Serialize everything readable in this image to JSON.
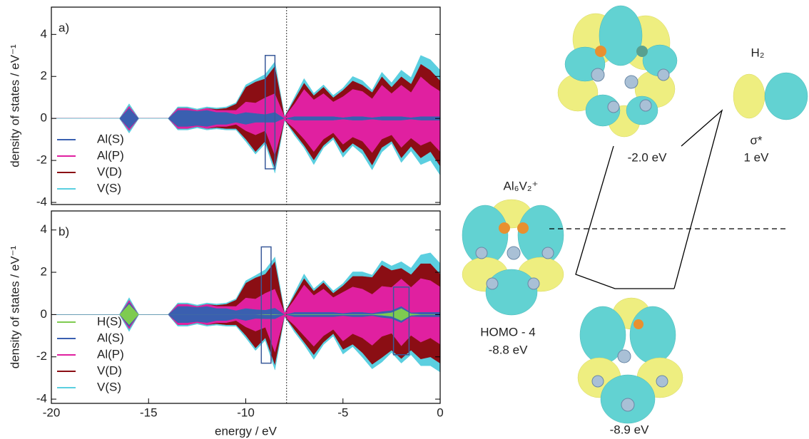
{
  "chart_data": [
    {
      "type": "area",
      "annotation": "a)",
      "ylabel": "density of states / eV⁻¹",
      "x": [
        -20,
        -19.5,
        -19,
        -18.5,
        -18,
        -17.5,
        -17,
        -16.5,
        -16,
        -15.5,
        -15,
        -14.5,
        -14,
        -13.5,
        -13,
        -12.5,
        -12,
        -11.5,
        -11,
        -10.5,
        -10,
        -9.5,
        -9,
        -8.5,
        -8,
        -7.5,
        -7,
        -6.5,
        -6,
        -5.5,
        -5,
        -4.5,
        -4,
        -3.5,
        -3,
        -2.5,
        -2,
        -1.5,
        -1,
        -0.5,
        0
      ],
      "xlim": [
        -20,
        0
      ],
      "ylim": [
        -4.1,
        5.3
      ],
      "yticks": [
        -4,
        -2,
        0,
        2,
        4
      ],
      "vline": -7.9,
      "boxes": [
        {
          "xlim": [
            -9,
            -8.5
          ],
          "ylim": [
            -2.4,
            3.0
          ]
        }
      ],
      "series": [
        {
          "name": "Al(S)",
          "color": "#3a5fb0",
          "values": [
            0,
            0,
            0,
            0,
            0,
            0,
            0,
            0,
            0.5,
            0,
            0,
            0,
            0,
            0.4,
            0.4,
            0.35,
            0.4,
            0.3,
            0.3,
            0.2,
            0.3,
            0.25,
            0.2,
            0.3,
            0,
            0.1,
            0.1,
            0.1,
            0.1,
            0.1,
            0.05,
            0.1,
            0.1,
            0.05,
            0.1,
            0.1,
            0.1,
            0.05,
            0.1,
            0.1,
            0.1
          ],
          "values_down": [
            0,
            0,
            0,
            0,
            0,
            0,
            0,
            0,
            -0.5,
            0,
            0,
            0,
            0,
            -0.4,
            -0.4,
            -0.35,
            -0.4,
            -0.3,
            -0.3,
            -0.2,
            -0.3,
            -0.2,
            -0.2,
            -0.2,
            0,
            -0.1,
            -0.1,
            -0.1,
            -0.1,
            -0.1,
            -0.05,
            -0.1,
            -0.1,
            -0.05,
            -0.1,
            -0.1,
            -0.1,
            -0.05,
            -0.1,
            -0.1,
            -0.1
          ]
        },
        {
          "name": "Al(P)",
          "color": "#e020a0",
          "values": [
            0,
            0,
            0,
            0,
            0,
            0,
            0,
            0,
            0.1,
            0,
            0,
            0,
            0,
            0.1,
            0.1,
            0.05,
            0.1,
            0.1,
            0.1,
            0.2,
            0.5,
            0.5,
            0.8,
            0.9,
            0.1,
            0.6,
            1.3,
            0.8,
            1.1,
            0.7,
            1.0,
            1.3,
            1.2,
            0.9,
            1.5,
            1.1,
            1.5,
            1.2,
            1.9,
            1.5,
            1.2
          ],
          "values_down": [
            0,
            0,
            0,
            0,
            0,
            0,
            0,
            0,
            -0.1,
            0,
            0,
            0,
            0,
            -0.1,
            -0.1,
            -0.05,
            -0.1,
            -0.1,
            -0.1,
            -0.1,
            -0.3,
            -0.6,
            -0.4,
            -1.6,
            -0.1,
            -0.4,
            -0.9,
            -1.5,
            -0.9,
            -0.6,
            -1.2,
            -0.8,
            -1.0,
            -1.6,
            -0.9,
            -0.7,
            -1.3,
            -0.9,
            -1.2,
            -1.0,
            -1.5
          ]
        },
        {
          "name": "V(D)",
          "color": "#8b0e14",
          "values": [
            0,
            0,
            0,
            0,
            0,
            0,
            0,
            0,
            0,
            0,
            0,
            0,
            0,
            0,
            0,
            0,
            0,
            0.05,
            0.1,
            0.3,
            0.7,
            1.0,
            0.9,
            1.3,
            0,
            0.2,
            0.3,
            0.2,
            0.3,
            0.2,
            0.3,
            0.4,
            0.3,
            0.3,
            0.4,
            0.3,
            0.4,
            0.4,
            0.6,
            0.7,
            0.5
          ],
          "values_down": [
            0,
            0,
            0,
            0,
            0,
            0,
            0,
            0,
            0,
            0,
            0,
            0,
            0,
            0,
            0,
            0,
            0,
            -0.05,
            -0.1,
            -0.2,
            -0.4,
            -0.8,
            -0.5,
            -0.6,
            0,
            -0.2,
            -0.3,
            -0.4,
            -0.3,
            -0.2,
            -0.4,
            -0.3,
            -0.4,
            -0.6,
            -0.4,
            -0.3,
            -0.5,
            -0.4,
            -0.6,
            -0.5,
            -0.7
          ]
        },
        {
          "name": "V(S)",
          "color": "#5bcfe0",
          "values": [
            0,
            0,
            0,
            0,
            0,
            0,
            0,
            0,
            0.1,
            0,
            0,
            0,
            0,
            0.05,
            0.05,
            0.05,
            0.05,
            0.05,
            0.05,
            0.05,
            0.1,
            0.1,
            0.2,
            0.2,
            0,
            0.1,
            0.2,
            0.1,
            0.1,
            0.1,
            0.1,
            0.2,
            0.2,
            0.1,
            0.2,
            0.2,
            0.3,
            0.3,
            0.4,
            0.5,
            0.5
          ],
          "values_down": [
            0,
            0,
            0,
            0,
            0,
            0,
            0,
            0,
            -0.1,
            0,
            0,
            0,
            0,
            -0.05,
            -0.05,
            -0.05,
            -0.05,
            -0.05,
            -0.05,
            -0.05,
            -0.1,
            -0.1,
            -0.1,
            -0.2,
            0,
            -0.1,
            -0.1,
            -0.2,
            -0.1,
            -0.1,
            -0.2,
            -0.1,
            -0.2,
            -0.2,
            -0.2,
            -0.1,
            -0.2,
            -0.2,
            -0.3,
            -0.4,
            -0.4
          ]
        }
      ]
    },
    {
      "type": "area",
      "annotation": "b)",
      "ylabel": "density of states / eV⁻¹",
      "xlabel": "energy / eV",
      "x": [
        -20,
        -19.5,
        -19,
        -18.5,
        -18,
        -17.5,
        -17,
        -16.5,
        -16,
        -15.5,
        -15,
        -14.5,
        -14,
        -13.5,
        -13,
        -12.5,
        -12,
        -11.5,
        -11,
        -10.5,
        -10,
        -9.5,
        -9,
        -8.5,
        -8,
        -7.5,
        -7,
        -6.5,
        -6,
        -5.5,
        -5,
        -4.5,
        -4,
        -3.5,
        -3,
        -2.5,
        -2,
        -1.5,
        -1,
        -0.5,
        0
      ],
      "xlim": [
        -20,
        0
      ],
      "ylim": [
        -4.2,
        4.9
      ],
      "xticks": [
        -20,
        -15,
        -10,
        -5,
        0
      ],
      "yticks": [
        -4,
        -2,
        0,
        2,
        4
      ],
      "vline": -7.9,
      "boxes": [
        {
          "xlim": [
            -9.2,
            -8.7
          ],
          "ylim": [
            -2.3,
            3.2
          ]
        },
        {
          "xlim": [
            -2.4,
            -1.6
          ],
          "ylim": [
            -1.9,
            1.3
          ]
        }
      ],
      "series": [
        {
          "name": "H(S)",
          "color": "#7ecb50",
          "values": [
            0,
            0,
            0,
            0,
            0,
            0,
            0,
            0,
            0.5,
            0,
            0,
            0,
            0,
            0,
            0,
            0,
            0,
            0,
            0,
            0,
            0,
            0,
            0.02,
            0.02,
            0,
            0.02,
            0.02,
            0.02,
            0.02,
            0.02,
            0.02,
            0.02,
            0.02,
            0.02,
            0.05,
            0.1,
            0.3,
            0.05,
            0.02,
            0.02,
            0.02
          ],
          "values_down": [
            0,
            0,
            0,
            0,
            0,
            0,
            0,
            0,
            -0.5,
            0,
            0,
            0,
            0,
            0,
            0,
            0,
            0,
            0,
            0,
            0,
            0,
            0,
            -0.02,
            -0.02,
            0,
            -0.02,
            -0.02,
            -0.02,
            -0.02,
            -0.02,
            -0.02,
            -0.02,
            -0.02,
            -0.02,
            -0.05,
            -0.1,
            -0.3,
            -0.05,
            -0.02,
            -0.02,
            -0.02
          ]
        },
        {
          "name": "Al(S)",
          "color": "#3a5fb0",
          "values": [
            0,
            0,
            0,
            0,
            0,
            0,
            0,
            0,
            0.1,
            0,
            0,
            0,
            0,
            0.4,
            0.4,
            0.35,
            0.4,
            0.3,
            0.3,
            0.2,
            0.3,
            0.25,
            0.2,
            0.3,
            0,
            0.1,
            0.1,
            0.1,
            0.1,
            0.1,
            0.05,
            0.1,
            0.1,
            0.05,
            0.1,
            0.1,
            0.1,
            0.05,
            0.1,
            0.1,
            0.1
          ],
          "values_down": [
            0,
            0,
            0,
            0,
            0,
            0,
            0,
            0,
            -0.1,
            0,
            0,
            0,
            0,
            -0.4,
            -0.4,
            -0.35,
            -0.4,
            -0.3,
            -0.3,
            -0.2,
            -0.3,
            -0.2,
            -0.2,
            -0.2,
            0,
            -0.1,
            -0.1,
            -0.1,
            -0.1,
            -0.1,
            -0.05,
            -0.1,
            -0.1,
            -0.05,
            -0.1,
            -0.1,
            -0.1,
            -0.05,
            -0.1,
            -0.1,
            -0.1
          ]
        },
        {
          "name": "Al(P)",
          "color": "#e020a0",
          "values": [
            0,
            0,
            0,
            0,
            0,
            0,
            0,
            0,
            0.1,
            0,
            0,
            0,
            0,
            0.1,
            0.1,
            0.05,
            0.1,
            0.1,
            0.1,
            0.2,
            0.5,
            0.5,
            0.8,
            0.9,
            0.1,
            0.6,
            1.3,
            0.8,
            1.1,
            0.7,
            1.0,
            1.2,
            1.1,
            0.9,
            1.2,
            1.1,
            1.3,
            1.2,
            1.6,
            1.5,
            1.2
          ],
          "values_down": [
            0,
            0,
            0,
            0,
            0,
            0,
            0,
            0,
            -0.1,
            0,
            0,
            0,
            0,
            -0.1,
            -0.1,
            -0.05,
            -0.1,
            -0.1,
            -0.1,
            -0.1,
            -0.3,
            -0.6,
            -0.4,
            -1.6,
            -0.1,
            -0.4,
            -0.9,
            -1.4,
            -0.9,
            -0.6,
            -1.2,
            -0.8,
            -1.0,
            -1.4,
            -0.9,
            -0.7,
            -1.1,
            -0.9,
            -1.2,
            -1.0,
            -1.3
          ]
        },
        {
          "name": "V(D)",
          "color": "#8b0e14",
          "values": [
            0,
            0,
            0,
            0,
            0,
            0,
            0,
            0,
            0,
            0,
            0,
            0,
            0,
            0,
            0,
            0,
            0,
            0.05,
            0.1,
            0.3,
            0.7,
            1.0,
            0.9,
            1.3,
            0,
            0.2,
            0.3,
            0.2,
            0.3,
            0.2,
            0.3,
            0.5,
            0.6,
            0.8,
            1.0,
            0.8,
            0.5,
            0.6,
            0.7,
            0.8,
            0.6
          ],
          "values_down": [
            0,
            0,
            0,
            0,
            0,
            0,
            0,
            0,
            0,
            0,
            0,
            0,
            0,
            0,
            0,
            0,
            0,
            -0.05,
            -0.1,
            -0.2,
            -0.4,
            -0.8,
            -0.5,
            -0.6,
            0,
            -0.2,
            -0.3,
            -0.4,
            -0.3,
            -0.2,
            -0.4,
            -0.5,
            -0.7,
            -0.9,
            -1.0,
            -0.8,
            -0.6,
            -0.7,
            -0.8,
            -0.9,
            -0.9
          ]
        },
        {
          "name": "V(S)",
          "color": "#5bcfe0",
          "values": [
            0,
            0,
            0,
            0,
            0,
            0,
            0,
            0,
            0.1,
            0,
            0,
            0,
            0,
            0.05,
            0.05,
            0.05,
            0.05,
            0.05,
            0.05,
            0.05,
            0.1,
            0.1,
            0.2,
            0.2,
            0,
            0.1,
            0.2,
            0.1,
            0.1,
            0.1,
            0.1,
            0.2,
            0.2,
            0.1,
            0.2,
            0.2,
            0.3,
            0.3,
            0.4,
            0.5,
            0.5
          ],
          "values_down": [
            0,
            0,
            0,
            0,
            0,
            0,
            0,
            0,
            -0.1,
            0,
            0,
            0,
            0,
            -0.05,
            -0.05,
            -0.05,
            -0.05,
            -0.05,
            -0.05,
            -0.05,
            -0.1,
            -0.1,
            -0.1,
            -0.2,
            0,
            -0.1,
            -0.1,
            -0.2,
            -0.1,
            -0.1,
            -0.2,
            -0.1,
            -0.2,
            -0.2,
            -0.2,
            -0.1,
            -0.2,
            -0.2,
            -0.3,
            -0.4,
            -0.4
          ]
        }
      ]
    }
  ],
  "diagram": {
    "h2": {
      "name": "H₂",
      "orbital": "σ*",
      "energy": "1 eV"
    },
    "lumo": {
      "energy": "-2.0 eV"
    },
    "cluster": {
      "name": "Al₆V₂⁺",
      "orbital": "HOMO - 4",
      "energy": "-8.8 eV"
    },
    "complex": {
      "energy": "-8.9 eV"
    }
  }
}
